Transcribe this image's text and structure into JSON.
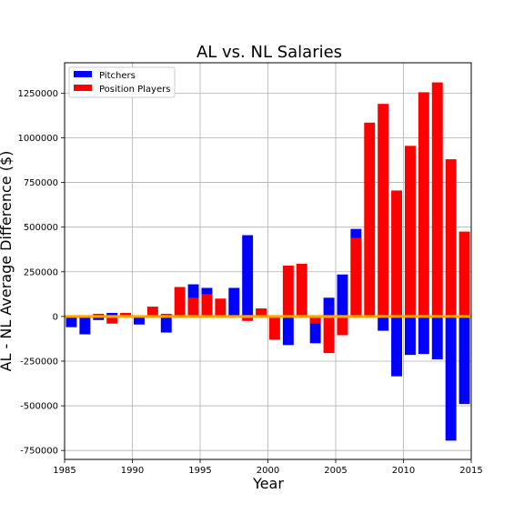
{
  "chart_data": {
    "type": "bar",
    "title": "AL vs. NL Salaries",
    "xlabel": "Year",
    "ylabel": "AL - NL Average Difference ($)",
    "xlim": [
      1985,
      2015
    ],
    "ylim": [
      -800000,
      1420000
    ],
    "x_ticks": [
      1985,
      1990,
      1995,
      2000,
      2005,
      2010,
      2015
    ],
    "y_ticks": [
      -750000,
      -500000,
      -250000,
      0,
      250000,
      500000,
      750000,
      1000000,
      1250000
    ],
    "grid": true,
    "legend_position": "top-left",
    "zero_line_color": "#ffa500",
    "x": [
      1985,
      1986,
      1987,
      1988,
      1989,
      1990,
      1991,
      1992,
      1993,
      1994,
      1995,
      1996,
      1997,
      1998,
      1999,
      2000,
      2001,
      2002,
      2003,
      2004,
      2005,
      2006,
      2007,
      2008,
      2009,
      2010,
      2011,
      2012,
      2013,
      2014
    ],
    "series": [
      {
        "name": "Pitchers",
        "color": "#0000ff",
        "values": [
          -60000,
          -100000,
          -20000,
          20000,
          10000,
          -45000,
          0,
          -90000,
          0,
          180000,
          160000,
          0,
          160000,
          455000,
          0,
          0,
          -160000,
          0,
          -150000,
          105000,
          235000,
          490000,
          0,
          -80000,
          -335000,
          -215000,
          -210000,
          -240000,
          -695000,
          -490000
        ]
      },
      {
        "name": "Position Players",
        "color": "#ff0000",
        "values": [
          -5000,
          0,
          15000,
          -40000,
          20000,
          0,
          55000,
          15000,
          165000,
          105000,
          125000,
          100000,
          0,
          -25000,
          45000,
          -130000,
          285000,
          295000,
          -40000,
          -205000,
          -105000,
          440000,
          1085000,
          1190000,
          705000,
          955000,
          1255000,
          1310000,
          880000,
          475000
        ]
      }
    ]
  }
}
